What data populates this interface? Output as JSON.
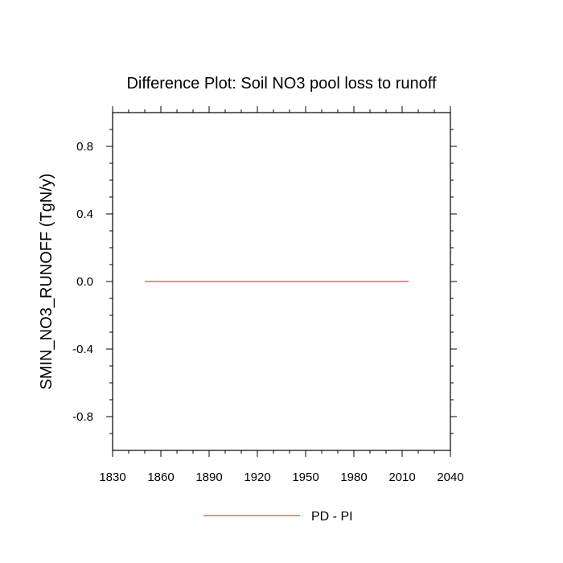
{
  "chart_data": {
    "type": "line",
    "title": "Difference Plot: Soil NO3 pool loss to runoff",
    "xlabel": "",
    "ylabel": "SMIN_NO3_RUNOFF  (TgN/y)",
    "xlim": [
      1830,
      2040
    ],
    "ylim": [
      -1.0,
      1.0
    ],
    "xticks": [
      1830,
      1860,
      1890,
      1920,
      1950,
      1980,
      2010,
      2040
    ],
    "yticks": [
      0.8,
      0.4,
      0.0,
      -0.4,
      -0.8
    ],
    "ytick_labels": [
      "0.8",
      "0.4",
      "0.0",
      "-0.4",
      "-0.8"
    ],
    "grid": false,
    "legend_position": "bottom-center",
    "series": [
      {
        "name": "PD - PI",
        "color": "#e06666",
        "x": [
          1850,
          2014
        ],
        "y": [
          0.0,
          0.0
        ]
      }
    ]
  }
}
